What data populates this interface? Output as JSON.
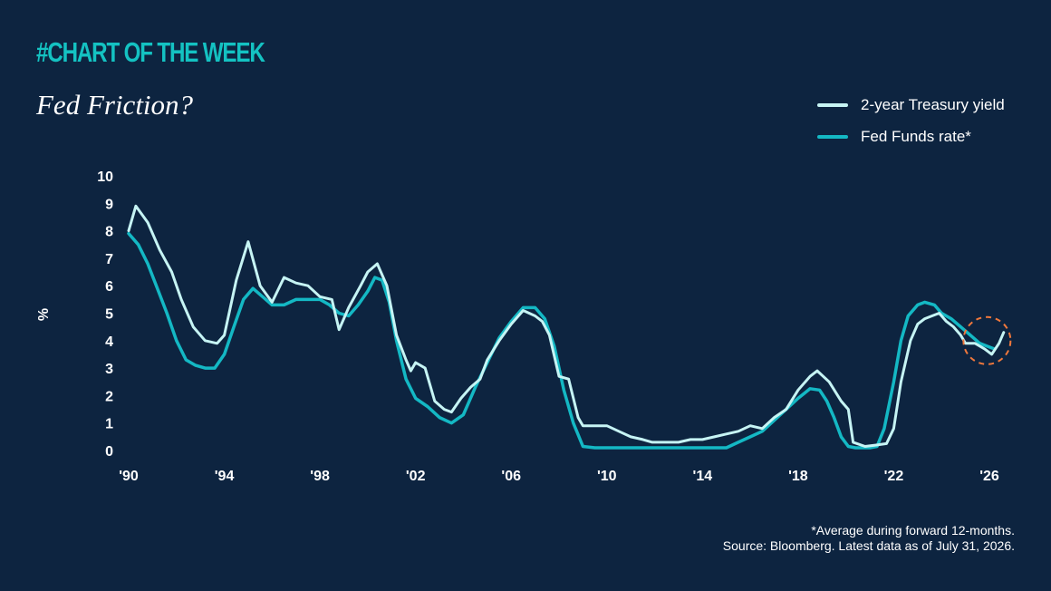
{
  "header": {
    "kicker": "#CHART OF THE WEEK",
    "title": "Fed Friction?"
  },
  "footnote": {
    "line1": "*Average during forward 12-months.",
    "line2": "Source: Bloomberg. Latest data as of July 31, 2026."
  },
  "colors": {
    "background": "#0d2440",
    "treasury": "#c6f4f4",
    "fedfunds": "#14b8c4",
    "highlight": "#f0783c"
  },
  "chart_data": {
    "type": "line",
    "ylabel": "%",
    "ylim": [
      0,
      10
    ],
    "xlim": [
      1990,
      2026.7
    ],
    "yticks": [
      "0",
      "1",
      "2",
      "3",
      "4",
      "5",
      "6",
      "7",
      "8",
      "9",
      "10"
    ],
    "xticks": [
      {
        "x": 1990,
        "label": "'90"
      },
      {
        "x": 1994,
        "label": "'94"
      },
      {
        "x": 1998,
        "label": "'98"
      },
      {
        "x": 2002,
        "label": "'02"
      },
      {
        "x": 2006,
        "label": "'06"
      },
      {
        "x": 2010,
        "label": "'10"
      },
      {
        "x": 2014,
        "label": "'14"
      },
      {
        "x": 2018,
        "label": "'18"
      },
      {
        "x": 2022,
        "label": "'22"
      },
      {
        "x": 2026,
        "label": "'26"
      }
    ],
    "legend_position": "top-right",
    "annotation": {
      "type": "dashed-circle",
      "x": 2025.9,
      "y": 4.0
    },
    "series": [
      {
        "name": "2-year Treasury yield",
        "color": "#c6f4f4",
        "x": [
          1990.0,
          1990.3,
          1990.8,
          1991.3,
          1991.8,
          1992.2,
          1992.7,
          1993.2,
          1993.7,
          1994.0,
          1994.5,
          1995.0,
          1995.5,
          1996.0,
          1996.5,
          1997.0,
          1997.5,
          1998.0,
          1998.5,
          1998.8,
          1999.2,
          1999.7,
          2000.0,
          2000.4,
          2000.8,
          2001.2,
          2001.6,
          2001.8,
          2002.0,
          2002.4,
          2002.8,
          2003.2,
          2003.5,
          2003.9,
          2004.3,
          2004.7,
          2005.0,
          2005.5,
          2006.0,
          2006.5,
          2007.0,
          2007.3,
          2007.6,
          2008.0,
          2008.4,
          2008.8,
          2009.0,
          2009.4,
          2010.0,
          2010.5,
          2011.0,
          2011.5,
          2011.9,
          2012.5,
          2013.0,
          2013.5,
          2014.0,
          2014.5,
          2015.0,
          2015.5,
          2016.0,
          2016.5,
          2017.0,
          2017.5,
          2018.0,
          2018.5,
          2018.8,
          2019.3,
          2019.8,
          2020.1,
          2020.3,
          2020.8,
          2021.3,
          2021.7,
          2022.0,
          2022.3,
          2022.7,
          2023.0,
          2023.3,
          2023.6,
          2023.9,
          2024.2,
          2024.5,
          2024.8,
          2025.0,
          2025.4,
          2025.8,
          2026.1,
          2026.4,
          2026.6
        ],
        "values": [
          8.0,
          8.9,
          8.3,
          7.3,
          6.5,
          5.5,
          4.5,
          4.0,
          3.9,
          4.2,
          6.2,
          7.6,
          6.0,
          5.4,
          6.3,
          6.1,
          6.0,
          5.6,
          5.5,
          4.4,
          5.2,
          6.0,
          6.5,
          6.8,
          6.0,
          4.2,
          3.3,
          2.9,
          3.2,
          3.0,
          1.8,
          1.5,
          1.4,
          1.9,
          2.3,
          2.6,
          3.3,
          4.0,
          4.6,
          5.1,
          4.9,
          4.7,
          4.2,
          2.7,
          2.6,
          1.2,
          0.9,
          0.9,
          0.9,
          0.7,
          0.5,
          0.4,
          0.3,
          0.3,
          0.3,
          0.4,
          0.4,
          0.5,
          0.6,
          0.7,
          0.9,
          0.8,
          1.2,
          1.5,
          2.2,
          2.7,
          2.9,
          2.5,
          1.8,
          1.5,
          0.3,
          0.15,
          0.2,
          0.25,
          0.8,
          2.5,
          4.0,
          4.6,
          4.8,
          4.9,
          5.0,
          4.7,
          4.5,
          4.2,
          3.9,
          3.9,
          3.7,
          3.5,
          3.9,
          4.3
        ]
      },
      {
        "name": "Fed Funds rate*",
        "color": "#14b8c4",
        "x": [
          1990.0,
          1990.4,
          1990.8,
          1991.2,
          1991.6,
          1992.0,
          1992.4,
          1992.8,
          1993.2,
          1993.6,
          1994.0,
          1994.4,
          1994.8,
          1995.2,
          1995.6,
          1996.0,
          1996.5,
          1997.0,
          1997.5,
          1998.0,
          1998.4,
          1998.8,
          1999.2,
          1999.6,
          2000.0,
          2000.3,
          2000.6,
          2000.9,
          2001.2,
          2001.6,
          2002.0,
          2002.5,
          2003.0,
          2003.5,
          2004.0,
          2004.5,
          2005.0,
          2005.5,
          2006.0,
          2006.5,
          2007.0,
          2007.4,
          2007.8,
          2008.2,
          2008.6,
          2009.0,
          2009.5,
          2010.0,
          2012.0,
          2014.0,
          2015.0,
          2015.5,
          2016.0,
          2016.5,
          2017.0,
          2017.5,
          2018.0,
          2018.5,
          2018.9,
          2019.2,
          2019.5,
          2019.8,
          2020.1,
          2020.4,
          2021.0,
          2021.3,
          2021.6,
          2022.0,
          2022.3,
          2022.6,
          2023.0,
          2023.3,
          2023.7,
          2024.0,
          2024.4,
          2024.8,
          2025.2,
          2025.6,
          2025.9,
          2026.2
        ],
        "values": [
          7.9,
          7.5,
          6.8,
          5.9,
          5.0,
          4.0,
          3.3,
          3.1,
          3.0,
          3.0,
          3.5,
          4.5,
          5.5,
          5.9,
          5.6,
          5.3,
          5.3,
          5.5,
          5.5,
          5.5,
          5.3,
          5.0,
          4.9,
          5.3,
          5.8,
          6.3,
          6.2,
          5.4,
          4.0,
          2.6,
          1.9,
          1.6,
          1.2,
          1.0,
          1.3,
          2.3,
          3.2,
          4.1,
          4.7,
          5.2,
          5.2,
          4.8,
          3.8,
          2.2,
          1.0,
          0.15,
          0.1,
          0.1,
          0.1,
          0.1,
          0.1,
          0.3,
          0.5,
          0.7,
          1.1,
          1.5,
          1.9,
          2.25,
          2.2,
          1.8,
          1.2,
          0.5,
          0.15,
          0.1,
          0.1,
          0.15,
          0.8,
          2.5,
          4.0,
          4.9,
          5.3,
          5.4,
          5.3,
          5.0,
          4.8,
          4.5,
          4.2,
          3.9,
          3.8,
          3.7
        ]
      }
    ]
  }
}
